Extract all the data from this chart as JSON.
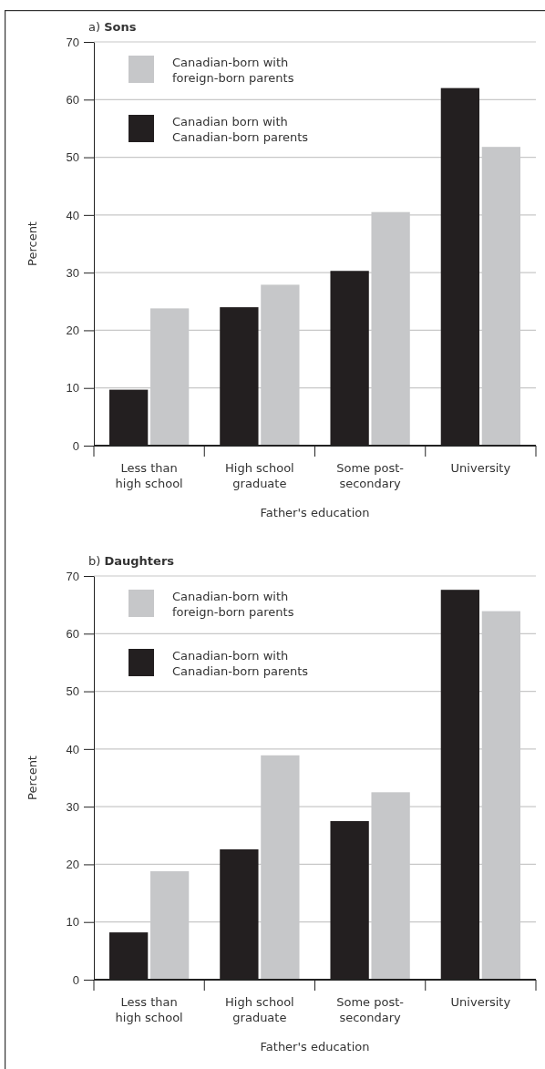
{
  "chart_data": [
    {
      "type": "bar",
      "title": "a) Sons",
      "xlabel": "Father's education",
      "ylabel": "Percent",
      "categories": [
        "Less than high school",
        "High school graduate",
        "Some post-secondary",
        "University"
      ],
      "series": [
        {
          "name": "Canadian born with Canadian-born parents",
          "color": "#231f20",
          "values": [
            9.7,
            24,
            30.3,
            62
          ]
        },
        {
          "name": "Canadian-born with foreign-born parents",
          "color": "#c6c7c9",
          "values": [
            23.8,
            27.9,
            40.5,
            51.8
          ]
        }
      ],
      "ylim": [
        0,
        70
      ],
      "yticks": [
        0,
        10,
        20,
        30,
        40,
        50,
        60,
        70
      ],
      "grid": "y",
      "legend": "top left"
    },
    {
      "type": "bar",
      "title": "b) Daughters",
      "xlabel": "Father's education",
      "ylabel": "Percent",
      "categories": [
        "Less than high school",
        "High school graduate",
        "Some post-secondary",
        "University"
      ],
      "series": [
        {
          "name": "Canadian-born with Canadian-born parents",
          "color": "#231f20",
          "values": [
            8.2,
            22.6,
            27.5,
            67.6
          ]
        },
        {
          "name": "Canadian-born with foreign-born parents",
          "color": "#c6c7c9",
          "values": [
            18.8,
            38.9,
            32.5,
            63.9
          ]
        }
      ],
      "ylim": [
        0,
        70
      ],
      "yticks": [
        0,
        10,
        20,
        30,
        40,
        50,
        60,
        70
      ],
      "grid": "y",
      "legend": "top left"
    }
  ]
}
